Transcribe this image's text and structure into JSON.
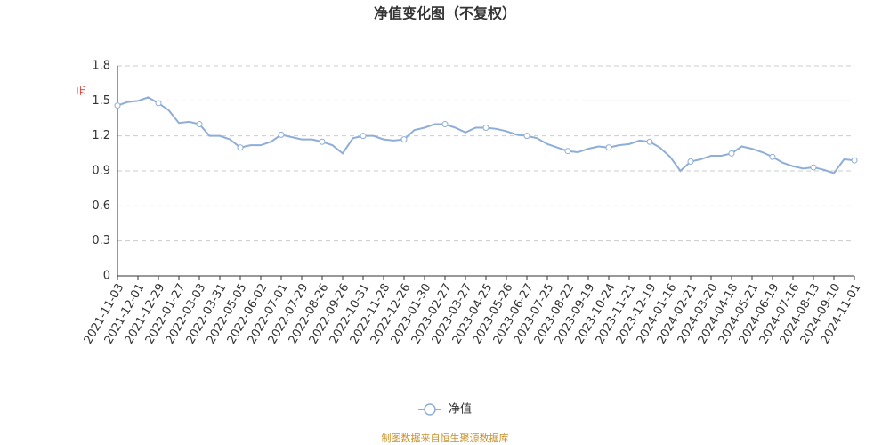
{
  "chart_data": {
    "type": "line",
    "title": "净值变化图（不复权）",
    "ylabel": "元",
    "footer": "制图数据来自恒生聚源数据库",
    "categories": [
      "2021-11-03",
      null,
      "2021-12-01",
      null,
      "2021-12-29",
      null,
      "2022-01-27",
      null,
      "2022-03-03",
      null,
      "2022-03-31",
      null,
      "2022-05-05",
      null,
      "2022-06-02",
      null,
      "2022-07-01",
      null,
      "2022-07-29",
      null,
      "2022-08-26",
      null,
      "2022-09-26",
      null,
      "2022-10-31",
      null,
      "2022-11-28",
      null,
      "2022-12-26",
      null,
      "2023-01-30",
      null,
      "2023-02-27",
      null,
      "2023-03-27",
      null,
      "2023-04-25",
      null,
      "2023-05-26",
      null,
      "2023-06-27",
      null,
      "2023-07-25",
      null,
      "2023-08-22",
      null,
      "2023-09-19",
      null,
      "2023-10-24",
      null,
      "2023-11-21",
      null,
      "2023-12-19",
      null,
      "2024-01-16",
      null,
      "2024-02-21",
      null,
      "2024-03-20",
      null,
      "2024-04-18",
      null,
      "2024-05-21",
      null,
      "2024-06-19",
      null,
      "2024-07-16",
      null,
      "2024-08-13",
      null,
      "2024-09-10",
      null,
      "2024-11-01"
    ],
    "series": [
      {
        "name": "净值",
        "color": "#8eaed8",
        "values": [
          1.46,
          1.49,
          1.5,
          1.53,
          1.48,
          1.42,
          1.31,
          1.32,
          1.3,
          1.2,
          1.2,
          1.17,
          1.1,
          1.12,
          1.12,
          1.15,
          1.21,
          1.19,
          1.17,
          1.17,
          1.15,
          1.12,
          1.05,
          1.18,
          1.2,
          1.2,
          1.17,
          1.16,
          1.17,
          1.25,
          1.27,
          1.3,
          1.3,
          1.27,
          1.23,
          1.27,
          1.27,
          1.26,
          1.24,
          1.21,
          1.2,
          1.18,
          1.13,
          1.1,
          1.07,
          1.06,
          1.09,
          1.11,
          1.1,
          1.12,
          1.13,
          1.16,
          1.15,
          1.1,
          1.02,
          0.9,
          0.98,
          1.0,
          1.03,
          1.03,
          1.05,
          1.11,
          1.09,
          1.06,
          1.02,
          0.97,
          0.94,
          0.92,
          0.93,
          0.91,
          0.88,
          1.0,
          0.99
        ]
      }
    ],
    "ylim": [
      0,
      1.8
    ],
    "yticks": [
      0,
      0.3,
      0.6,
      0.9,
      1.2,
      1.5,
      1.8
    ],
    "grid": true
  }
}
